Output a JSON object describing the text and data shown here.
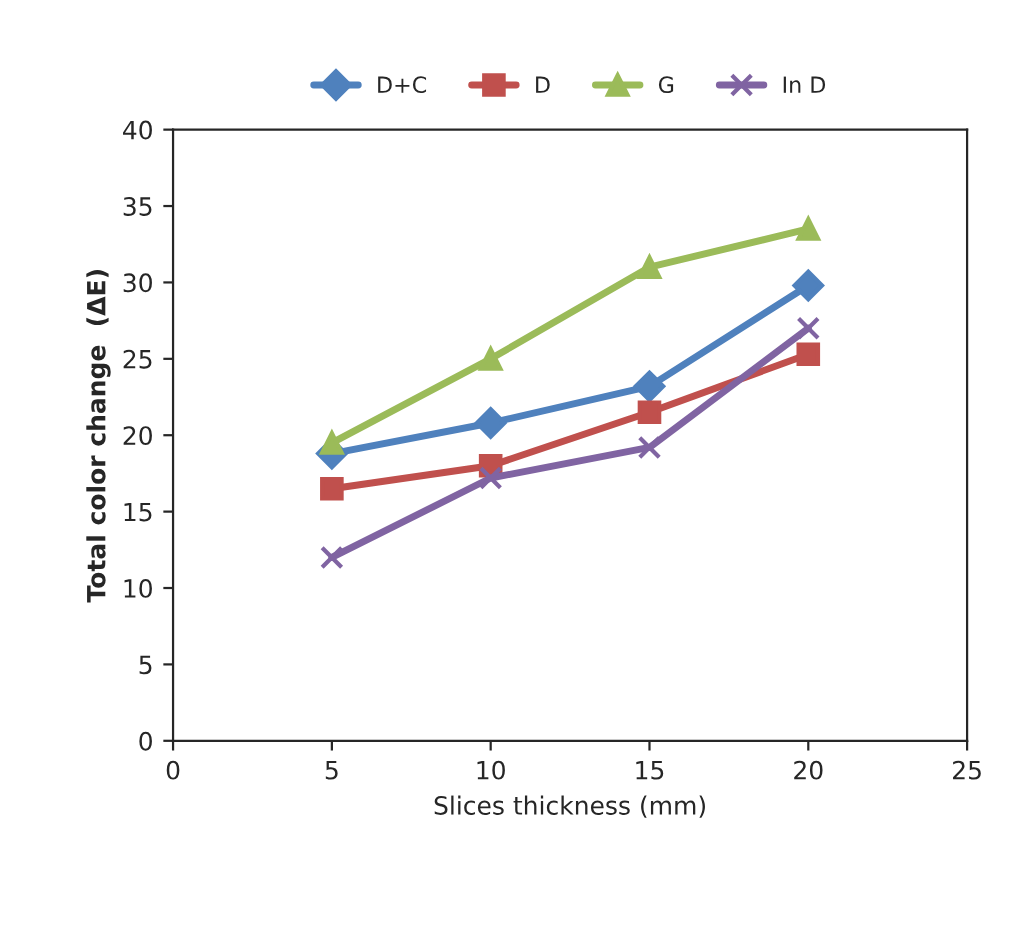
{
  "chart_data": {
    "type": "line",
    "xlabel": "Slices thickness (mm)",
    "ylabel": "Total color change  (ΔE)",
    "x": [
      5,
      10,
      15,
      20
    ],
    "xlim": [
      0,
      25
    ],
    "xticks": [
      0,
      5,
      10,
      15,
      20,
      25
    ],
    "ylim": [
      0,
      40
    ],
    "yticks": [
      0,
      5,
      10,
      15,
      20,
      25,
      30,
      35,
      40
    ],
    "grid": false,
    "legend": "top",
    "line_style": "solid",
    "series": [
      {
        "name": "D+C",
        "color": "#4f81bd",
        "marker": "diamond",
        "values": [
          18.8,
          20.8,
          23.2,
          29.8
        ]
      },
      {
        "name": "D",
        "color": "#c0504d",
        "marker": "square",
        "values": [
          16.5,
          18.0,
          21.5,
          25.3
        ]
      },
      {
        "name": "G",
        "color": "#9bbb59",
        "marker": "triangle",
        "values": [
          19.5,
          25.0,
          31.0,
          33.5
        ]
      },
      {
        "name": "In D",
        "color": "#8064a2",
        "marker": "cross",
        "values": [
          12.0,
          17.2,
          19.2,
          27.0
        ]
      }
    ]
  }
}
